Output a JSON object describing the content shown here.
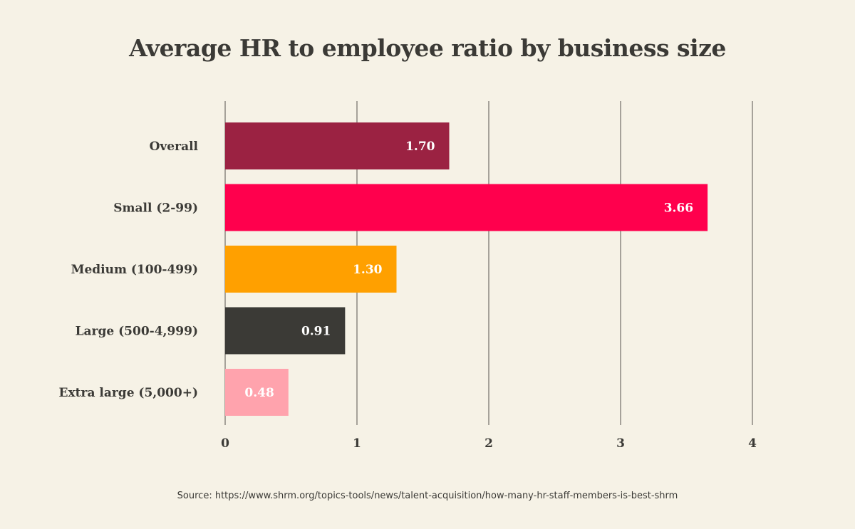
{
  "chart_data": {
    "type": "bar",
    "orientation": "horizontal",
    "title": "Average HR to employee ratio by business size",
    "categories": [
      "Overall",
      "Small (2-99)",
      "Medium (100-499)",
      "Large (500-4,999)",
      "Extra large (5,000+)"
    ],
    "values": [
      1.7,
      3.66,
      1.3,
      0.91,
      0.48
    ],
    "value_labels": [
      "1.70",
      "3.66",
      "1.30",
      "0.91",
      "0.48"
    ],
    "colors": [
      "#9b2242",
      "#ff004d",
      "#ffa000",
      "#3b3a36",
      "#ffa3ad"
    ],
    "xlim": [
      0,
      4
    ],
    "xticks": [
      "0",
      "1",
      "2",
      "3",
      "4"
    ],
    "grid": true,
    "xlabel": "",
    "ylabel": ""
  },
  "source": "Source: https://www.shrm.org/topics-tools/news/talent-acquisition/how-many-hr-staff-members-is-best-shrm"
}
